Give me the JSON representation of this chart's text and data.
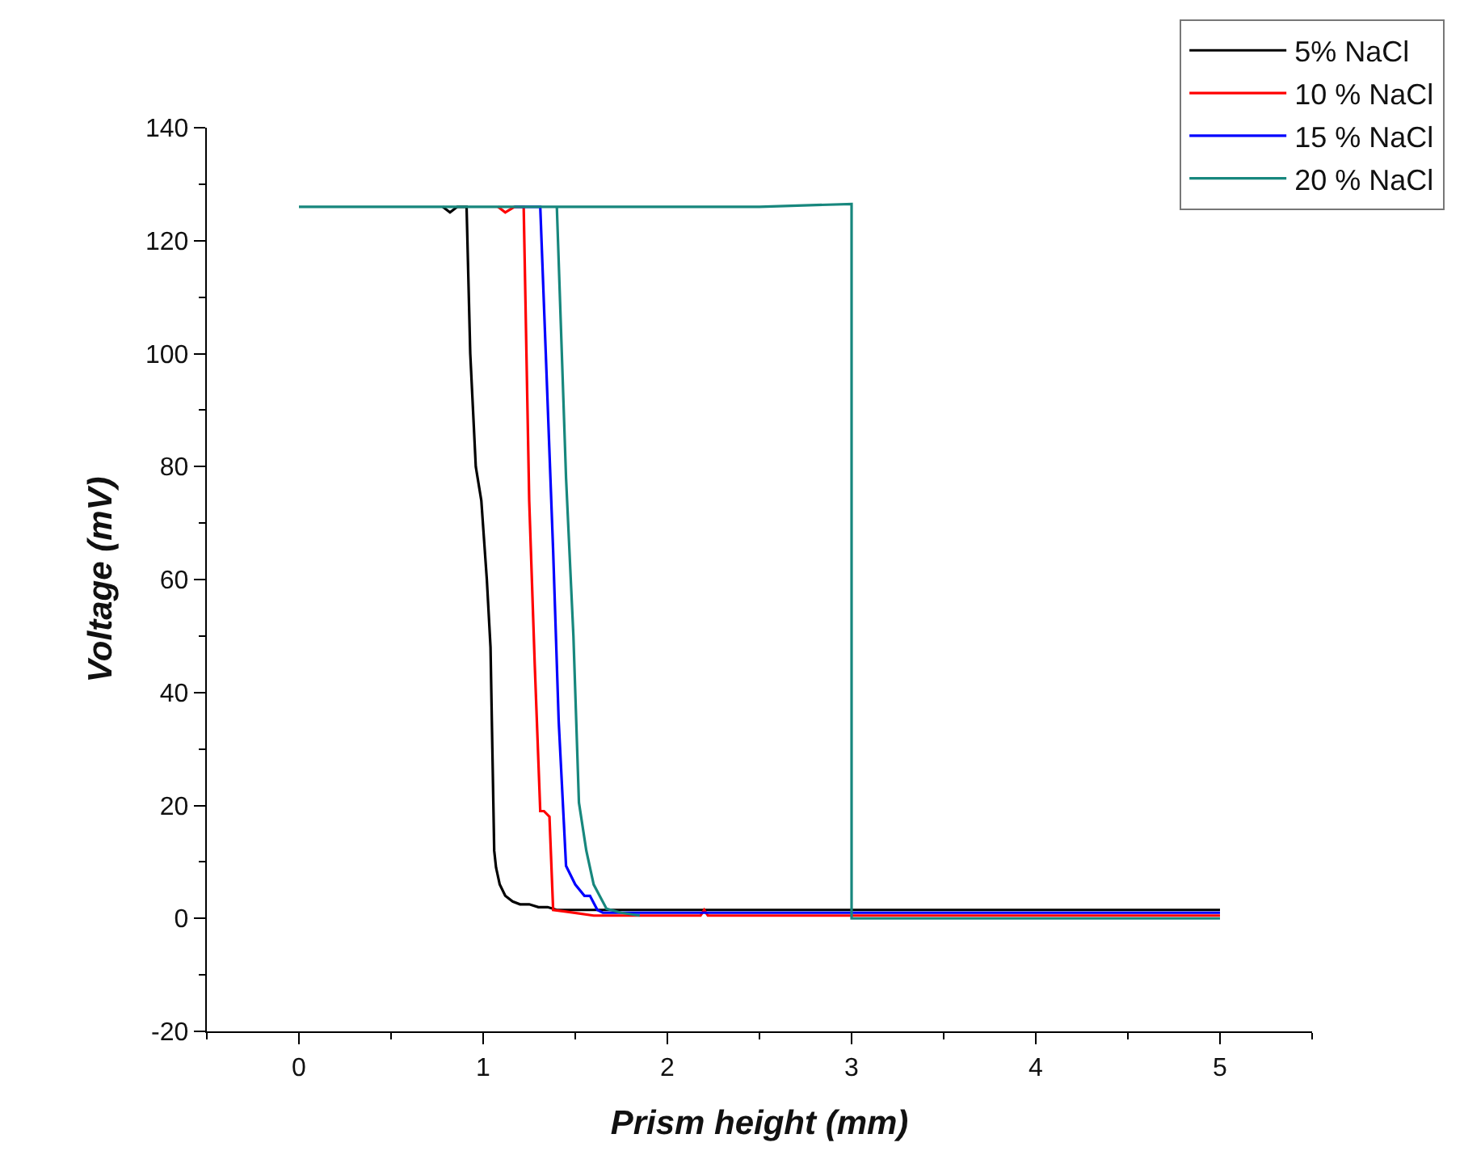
{
  "chart_data": {
    "type": "line",
    "xlabel": "Prism height (mm)",
    "ylabel": "Voltage (mV)",
    "xlim": [
      -0.5,
      5.5
    ],
    "xticks": [
      0,
      1,
      2,
      3,
      4,
      5
    ],
    "ylim": [
      -20,
      140
    ],
    "yticks": [
      -20,
      0,
      20,
      40,
      60,
      80,
      100,
      120,
      140
    ],
    "grid": false,
    "legend": "top right",
    "line_style": "solid",
    "marker": "none",
    "series": [
      {
        "name": "5% NaCl",
        "color": "#000000",
        "x": [
          0.78,
          0.82,
          0.86,
          0.91,
          0.93,
          0.96,
          0.99,
          1.02,
          1.04,
          1.05,
          1.06,
          1.07,
          1.09,
          1.12,
          1.16,
          1.2,
          1.25,
          1.3,
          1.35,
          1.4,
          1.5,
          2,
          2.5,
          3,
          3.5,
          4,
          4.5,
          5
        ],
        "values": [
          126,
          125,
          126,
          126,
          100,
          80,
          74,
          60,
          48,
          30,
          12,
          9,
          6,
          4,
          3,
          2.5,
          2.5,
          2,
          2,
          1.5,
          1.5,
          1.5,
          1.5,
          1.5,
          1.5,
          1.5,
          1.5,
          1.5
        ]
      },
      {
        "name": "10 % NaCl",
        "color": "#ff0000",
        "x": [
          1.08,
          1.12,
          1.17,
          1.22,
          1.25,
          1.28,
          1.31,
          1.33,
          1.36,
          1.38,
          1.45,
          1.6,
          2,
          2.18,
          2.2,
          2.22,
          2.5,
          3,
          3.5,
          4,
          4.5,
          5
        ],
        "values": [
          126,
          125,
          126,
          126,
          74,
          45,
          19,
          19,
          18,
          1.5,
          1.2,
          0.5,
          0.5,
          0.5,
          1.5,
          0.5,
          0.5,
          0.5,
          0.5,
          0.5,
          0.5,
          0.5
        ]
      },
      {
        "name": "15 % NaCl",
        "color": "#0000ff",
        "x": [
          1.17,
          1.22,
          1.27,
          1.31,
          1.34,
          1.38,
          1.41,
          1.45,
          1.5,
          1.55,
          1.58,
          1.62,
          1.65,
          2,
          2.5,
          3,
          3.5,
          4,
          4.5,
          5
        ],
        "values": [
          126,
          126,
          126,
          126,
          100,
          65,
          35,
          9.3,
          6,
          4,
          4,
          1.5,
          1,
          1,
          1,
          1,
          1,
          1,
          1,
          1
        ]
      },
      {
        "name": "20 % NaCl",
        "color": "#17877d",
        "x": [
          0,
          0.1,
          0.5,
          1,
          1.5,
          2,
          2.5,
          3,
          3,
          3.5,
          4,
          4.5,
          5,
          null,
          1.4,
          1.45,
          1.49,
          1.52,
          1.56,
          1.6,
          1.67,
          1.75,
          1.85
        ],
        "values": [
          126,
          126,
          126,
          126,
          126,
          126,
          126,
          126.5,
          0,
          0,
          0,
          0,
          0,
          null,
          126,
          78,
          50,
          20.5,
          12,
          6,
          1.7,
          1,
          0.5
        ]
      }
    ]
  }
}
